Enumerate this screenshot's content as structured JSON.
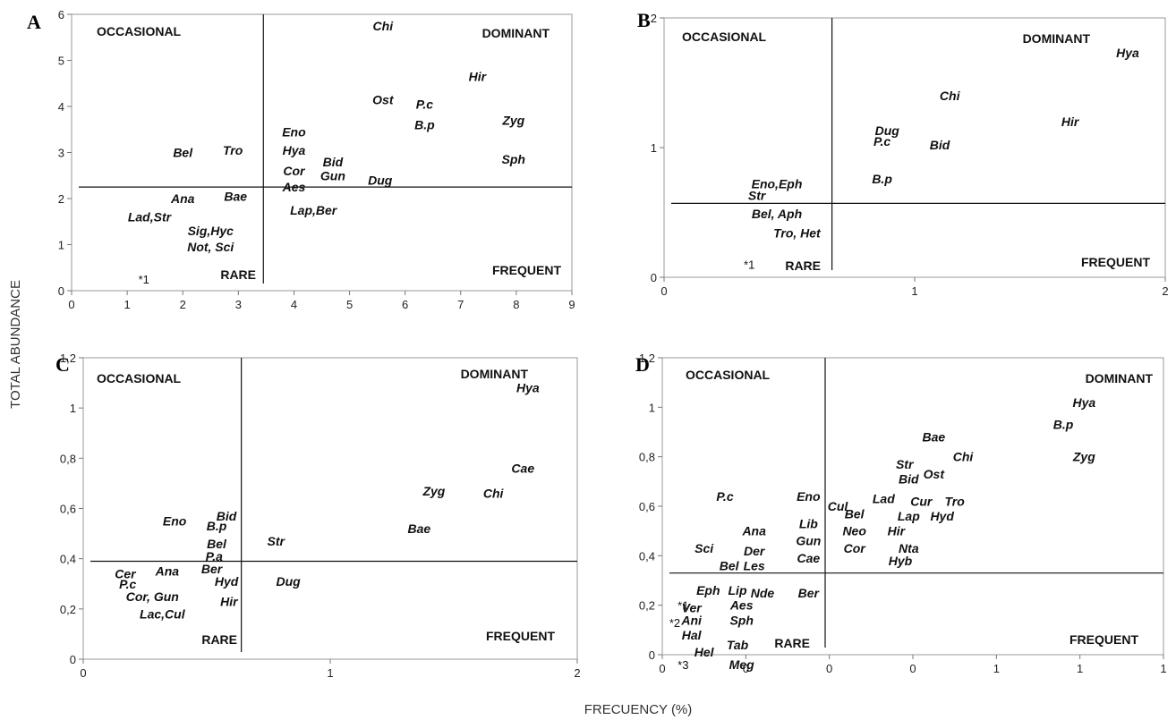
{
  "figure": {
    "ylabel": "TOTAL ABUNDANCE",
    "xlabel": "FRECUENCY (%)"
  },
  "chart_data": [
    {
      "panel": "A",
      "type": "scatter",
      "title": "",
      "xticks": [
        "0",
        "1",
        "2",
        "3",
        "4",
        "5",
        "6",
        "7",
        "8",
        "9"
      ],
      "yticks": [
        "0",
        "1",
        "2",
        "3",
        "4",
        "5",
        "6"
      ],
      "xlim": [
        0,
        9
      ],
      "ylim": [
        0,
        6
      ],
      "grid": false,
      "dividers": {
        "x": 3.45,
        "y": 2.25
      },
      "quadrants": {
        "top_left": "OCCASIONAL",
        "top_right": "DOMINANT",
        "bottom_left": "RARE",
        "bottom_right": "FREQUENT"
      },
      "points": [
        {
          "label": "Chi",
          "x": 5.6,
          "y": 5.75
        },
        {
          "label": "Hir",
          "x": 7.3,
          "y": 4.65
        },
        {
          "label": "Ost",
          "x": 5.6,
          "y": 4.15
        },
        {
          "label": "P.c",
          "x": 6.35,
          "y": 4.05
        },
        {
          "label": "Zyg",
          "x": 7.95,
          "y": 3.7
        },
        {
          "label": "B.p",
          "x": 6.35,
          "y": 3.6
        },
        {
          "label": "Eno",
          "x": 4.0,
          "y": 3.45
        },
        {
          "label": "Hya",
          "x": 4.0,
          "y": 3.05
        },
        {
          "label": "Bel",
          "x": 2.0,
          "y": 3.0
        },
        {
          "label": "Tro",
          "x": 2.9,
          "y": 3.05
        },
        {
          "label": "Sph",
          "x": 7.95,
          "y": 2.85
        },
        {
          "label": "Bid",
          "x": 4.7,
          "y": 2.8
        },
        {
          "label": "Cor",
          "x": 4.0,
          "y": 2.6
        },
        {
          "label": "Gun",
          "x": 4.7,
          "y": 2.5
        },
        {
          "label": "Dug",
          "x": 5.55,
          "y": 2.4
        },
        {
          "label": "Aes",
          "x": 4.0,
          "y": 2.25
        },
        {
          "label": "Ana",
          "x": 2.0,
          "y": 2.0
        },
        {
          "label": "Bae",
          "x": 2.95,
          "y": 2.05
        },
        {
          "label": "Lap,Ber",
          "x": 4.35,
          "y": 1.75
        },
        {
          "label": "Lad,Str",
          "x": 1.4,
          "y": 1.6
        },
        {
          "label": "Sig,Hyc",
          "x": 2.5,
          "y": 1.3
        },
        {
          "label": "Not, Sci",
          "x": 2.5,
          "y": 0.95
        }
      ],
      "notes": [
        {
          "label": "*1",
          "x": 1.3,
          "y": 0.25
        }
      ]
    },
    {
      "panel": "B",
      "type": "scatter",
      "title": "",
      "xticks": [
        "0",
        "1",
        "2"
      ],
      "yticks": [
        "0",
        "1",
        "2"
      ],
      "xlim": [
        0,
        2
      ],
      "ylim": [
        0,
        2
      ],
      "grid": false,
      "dividers": {
        "x": 0.67,
        "y": 0.57
      },
      "quadrants": {
        "top_left": "OCCASIONAL",
        "top_right": "DOMINANT",
        "bottom_left": "RARE",
        "bottom_right": "FREQUENT"
      },
      "points": [
        {
          "label": "Hya",
          "x": 1.85,
          "y": 1.73
        },
        {
          "label": "Chi",
          "x": 1.14,
          "y": 1.4
        },
        {
          "label": "Hir",
          "x": 1.62,
          "y": 1.2
        },
        {
          "label": "Dug",
          "x": 0.89,
          "y": 1.13
        },
        {
          "label": "P.c",
          "x": 0.87,
          "y": 1.05
        },
        {
          "label": "Bid",
          "x": 1.1,
          "y": 1.02
        },
        {
          "label": "B.p",
          "x": 0.87,
          "y": 0.76
        },
        {
          "label": "Eno,Eph",
          "x": 0.45,
          "y": 0.72
        },
        {
          "label": "Str",
          "x": 0.37,
          "y": 0.63
        },
        {
          "label": "Bel, Aph",
          "x": 0.45,
          "y": 0.49
        },
        {
          "label": "Tro, Het",
          "x": 0.53,
          "y": 0.34
        }
      ],
      "notes": [
        {
          "label": "*1",
          "x": 0.34,
          "y": 0.1
        }
      ]
    },
    {
      "panel": "C",
      "type": "scatter",
      "title": "",
      "xticks": [
        "0",
        "1",
        "2"
      ],
      "yticks": [
        "0",
        "0,2",
        "0,4",
        "0,6",
        "0,8",
        "1",
        "1,2"
      ],
      "xlim": [
        0,
        2
      ],
      "ylim": [
        0,
        1.2
      ],
      "grid": false,
      "dividers": {
        "x": 0.64,
        "y": 0.39
      },
      "quadrants": {
        "top_left": "OCCASIONAL",
        "top_right": "DOMINANT",
        "bottom_left": "RARE",
        "bottom_right": "FREQUENT"
      },
      "points": [
        {
          "label": "Hya",
          "x": 1.8,
          "y": 1.08
        },
        {
          "label": "Cae",
          "x": 1.78,
          "y": 0.76
        },
        {
          "label": "Zyg",
          "x": 1.42,
          "y": 0.67
        },
        {
          "label": "Chi",
          "x": 1.66,
          "y": 0.66
        },
        {
          "label": "Bae",
          "x": 1.36,
          "y": 0.52
        },
        {
          "label": "Bid",
          "x": 0.58,
          "y": 0.57
        },
        {
          "label": "Eno",
          "x": 0.37,
          "y": 0.55
        },
        {
          "label": "B.p",
          "x": 0.54,
          "y": 0.53
        },
        {
          "label": "Str",
          "x": 0.78,
          "y": 0.47
        },
        {
          "label": "Bel",
          "x": 0.54,
          "y": 0.46
        },
        {
          "label": "P.a",
          "x": 0.53,
          "y": 0.41
        },
        {
          "label": "Cer",
          "x": 0.17,
          "y": 0.34
        },
        {
          "label": "Ana",
          "x": 0.34,
          "y": 0.35
        },
        {
          "label": "Ber",
          "x": 0.52,
          "y": 0.36
        },
        {
          "label": "P.c",
          "x": 0.18,
          "y": 0.3
        },
        {
          "label": "Dug",
          "x": 0.83,
          "y": 0.31
        },
        {
          "label": "Hyd",
          "x": 0.58,
          "y": 0.31
        },
        {
          "label": "Cor, Gun",
          "x": 0.28,
          "y": 0.25
        },
        {
          "label": "Hir",
          "x": 0.59,
          "y": 0.23
        },
        {
          "label": "Lac,Cul",
          "x": 0.32,
          "y": 0.18
        }
      ],
      "notes": []
    },
    {
      "panel": "D",
      "type": "scatter",
      "title": "",
      "xticks": [
        "0",
        "0",
        "0",
        "0",
        "1",
        "1",
        "1"
      ],
      "yticks": [
        "0",
        "0,2",
        "0,4",
        "0,6",
        "0,8",
        "1",
        "1,2"
      ],
      "xlim": [
        0,
        6
      ],
      "ylim": [
        0,
        1.2
      ],
      "grid": false,
      "dividers": {
        "x": 1.95,
        "y": 0.33
      },
      "quadrants": {
        "top_left": "OCCASIONAL",
        "top_right": "DOMINANT",
        "bottom_left": "RARE",
        "bottom_right": "FREQUENT"
      },
      "points": [
        {
          "label": "Hya",
          "x": 5.05,
          "y": 1.02
        },
        {
          "label": "B.p",
          "x": 4.8,
          "y": 0.93
        },
        {
          "label": "Bae",
          "x": 3.25,
          "y": 0.88
        },
        {
          "label": "Chi",
          "x": 3.6,
          "y": 0.8
        },
        {
          "label": "Zyg",
          "x": 5.05,
          "y": 0.8
        },
        {
          "label": "Str",
          "x": 2.9,
          "y": 0.77
        },
        {
          "label": "Ost",
          "x": 3.25,
          "y": 0.73
        },
        {
          "label": "Bid",
          "x": 2.95,
          "y": 0.71
        },
        {
          "label": "P.c",
          "x": 0.75,
          "y": 0.64
        },
        {
          "label": "Eno",
          "x": 1.75,
          "y": 0.64
        },
        {
          "label": "Lad",
          "x": 2.65,
          "y": 0.63
        },
        {
          "label": "Cur",
          "x": 3.1,
          "y": 0.62
        },
        {
          "label": "Tro",
          "x": 3.5,
          "y": 0.62
        },
        {
          "label": "Cul",
          "x": 2.1,
          "y": 0.6
        },
        {
          "label": "Bel",
          "x": 2.3,
          "y": 0.57
        },
        {
          "label": "Lap",
          "x": 2.95,
          "y": 0.56
        },
        {
          "label": "Hyd",
          "x": 3.35,
          "y": 0.56
        },
        {
          "label": "Lib",
          "x": 1.75,
          "y": 0.53
        },
        {
          "label": "Ana",
          "x": 1.1,
          "y": 0.5
        },
        {
          "label": "Neo",
          "x": 2.3,
          "y": 0.5
        },
        {
          "label": "Hir",
          "x": 2.8,
          "y": 0.5
        },
        {
          "label": "Gun",
          "x": 1.75,
          "y": 0.46
        },
        {
          "label": "Sci",
          "x": 0.5,
          "y": 0.43
        },
        {
          "label": "Der",
          "x": 1.1,
          "y": 0.42
        },
        {
          "label": "Cor",
          "x": 2.3,
          "y": 0.43
        },
        {
          "label": "Nta",
          "x": 2.95,
          "y": 0.43
        },
        {
          "label": "Hyb",
          "x": 2.85,
          "y": 0.38
        },
        {
          "label": "Cae",
          "x": 1.75,
          "y": 0.39
        },
        {
          "label": "Bel",
          "x": 0.8,
          "y": 0.36
        },
        {
          "label": "Les",
          "x": 1.1,
          "y": 0.36
        },
        {
          "label": "Eph",
          "x": 0.55,
          "y": 0.26
        },
        {
          "label": "Lip",
          "x": 0.9,
          "y": 0.26
        },
        {
          "label": "Nde",
          "x": 1.2,
          "y": 0.25
        },
        {
          "label": "Ber",
          "x": 1.75,
          "y": 0.25
        },
        {
          "label": "Ver",
          "x": 0.35,
          "y": 0.19
        },
        {
          "label": "Aes",
          "x": 0.95,
          "y": 0.2
        },
        {
          "label": "Ani",
          "x": 0.35,
          "y": 0.14
        },
        {
          "label": "Sph",
          "x": 0.95,
          "y": 0.14
        },
        {
          "label": "Hal",
          "x": 0.35,
          "y": 0.08
        },
        {
          "label": "Tab",
          "x": 0.9,
          "y": 0.04
        },
        {
          "label": "Hel",
          "x": 0.5,
          "y": 0.01
        },
        {
          "label": "Meg",
          "x": 0.95,
          "y": -0.04
        }
      ],
      "notes": [
        {
          "label": "*1",
          "x": 0.25,
          "y": 0.2
        },
        {
          "label": "*2",
          "x": 0.15,
          "y": 0.13
        },
        {
          "label": "*3",
          "x": 0.25,
          "y": -0.04
        }
      ]
    }
  ]
}
